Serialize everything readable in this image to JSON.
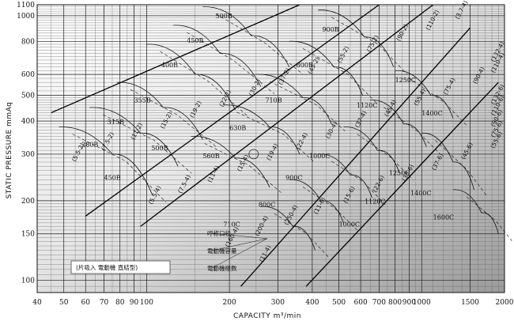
{
  "chart_data": {
    "type": "line",
    "title": "",
    "xlabel": "CAPACITY m³/min",
    "ylabel": "STATIC PRESSURE mmAq",
    "x_scale": "log",
    "y_scale": "log",
    "xlim": [
      40,
      2000
    ],
    "ylim": [
      90,
      1100
    ],
    "x_ticks": [
      "40",
      "50",
      "60",
      "70",
      "80",
      "90",
      "100",
      "200",
      "300",
      "400",
      "500",
      "600",
      "700",
      "800",
      "900",
      "1000",
      "1500",
      "2000"
    ],
    "x_tick_values": [
      40,
      50,
      60,
      70,
      80,
      90,
      100,
      200,
      300,
      400,
      500,
      600,
      700,
      800,
      900,
      1000,
      1500,
      2000
    ],
    "y_ticks": [
      "100",
      "150",
      "200",
      "300",
      "400",
      "500",
      "600",
      "800",
      "1000",
      "1100"
    ],
    "y_tick_values": [
      100,
      150,
      200,
      300,
      400,
      500,
      600,
      800,
      1000,
      1100
    ],
    "grid": true,
    "series": [
      {
        "name": "280B",
        "values": [
          [
            48,
            380
          ],
          [
            75,
            300
          ],
          [
            105,
            210
          ]
        ]
      },
      {
        "name": "315B",
        "values": [
          [
            62,
            450
          ],
          [
            95,
            360
          ],
          [
            130,
            270
          ]
        ]
      },
      {
        "name": "355B",
        "values": [
          [
            78,
            560
          ],
          [
            115,
            450
          ],
          [
            160,
            340
          ]
        ]
      },
      {
        "name": "400B",
        "values": [
          [
            100,
            780
          ],
          [
            150,
            600
          ],
          [
            210,
            440
          ]
        ]
      },
      {
        "name": "450B",
        "values": [
          [
            125,
            920
          ],
          [
            185,
            720
          ],
          [
            260,
            540
          ]
        ]
      },
      {
        "name": "500B",
        "values": [
          [
            160,
            1080
          ],
          [
            240,
            840
          ],
          [
            330,
            640
          ]
        ]
      },
      {
        "name": "560B",
        "values": [
          [
            145,
            350
          ],
          [
            210,
            290
          ],
          [
            280,
            225
          ]
        ]
      },
      {
        "name": "630B",
        "values": [
          [
            190,
            460
          ],
          [
            280,
            380
          ],
          [
            360,
            300
          ]
        ]
      },
      {
        "name": "710B",
        "values": [
          [
            250,
            600
          ],
          [
            370,
            490
          ],
          [
            470,
            390
          ]
        ]
      },
      {
        "name": "800B",
        "values": [
          [
            330,
            800
          ],
          [
            480,
            640
          ],
          [
            610,
            500
          ]
        ]
      },
      {
        "name": "900B",
        "values": [
          [
            420,
            1050
          ],
          [
            620,
            830
          ],
          [
            790,
            640
          ]
        ]
      },
      {
        "name": "710C",
        "values": [
          [
            260,
            190
          ],
          [
            340,
            160
          ],
          [
            410,
            130
          ]
        ]
      },
      {
        "name": "800C",
        "values": [
          [
            330,
            240
          ],
          [
            430,
            200
          ],
          [
            520,
            165
          ]
        ]
      },
      {
        "name": "900C",
        "values": [
          [
            420,
            300
          ],
          [
            550,
            250
          ],
          [
            660,
            205
          ]
        ]
      },
      {
        "name": "1000C",
        "values": [
          [
            520,
            380
          ],
          [
            690,
            310
          ],
          [
            830,
            255
          ]
        ]
      },
      {
        "name": "1120C",
        "values": [
          [
            650,
            480
          ],
          [
            860,
            390
          ],
          [
            1040,
            320
          ]
        ]
      },
      {
        "name": "1250C",
        "values": [
          [
            800,
            620
          ],
          [
            1080,
            500
          ],
          [
            1300,
            410
          ]
        ]
      },
      {
        "name": "1400C",
        "values": [
          [
            1000,
            360
          ],
          [
            1300,
            280
          ],
          [
            1550,
            220
          ]
        ]
      },
      {
        "name": "1600C",
        "values": [
          [
            1300,
            220
          ],
          [
            1650,
            180
          ],
          [
            1900,
            150
          ]
        ]
      }
    ],
    "region_labels": [
      "280B",
      "315B",
      "355B",
      "400B",
      "450B",
      "500B",
      "450B",
      "500B",
      "560B",
      "630B",
      "710B",
      "800B",
      "900B",
      "710C",
      "800C",
      "900C",
      "1000C",
      "1120C",
      "1250C",
      "1400C",
      "1000C",
      "1120C",
      "1250C",
      "1400C",
      "1600C"
    ],
    "legend": {
      "title": "(片吸入 電動機 直結型)",
      "items": [
        "呼称口径",
        "電動機容量",
        "電動機極数"
      ],
      "sample_label": "(11-4)"
    },
    "motor_labels": [
      "(5.5-2)",
      "(7.5-2)",
      "(11-2)",
      "(15-2)",
      "(19-2)",
      "(22-2)",
      "(30-2)",
      "(37-2)",
      "(45-2)",
      "(55-2)",
      "(75-2)",
      "(90-2)",
      "(110-2)",
      "(3.7-4)",
      "(5.5-4)",
      "(7.5-4)",
      "(11-4)",
      "(15-4)",
      "(19-4)",
      "(22-4)",
      "(30-4)",
      "(37-4)",
      "(45-4)",
      "(55-4)",
      "(75-4)",
      "(90-4)",
      "(110-4)",
      "(132-4)",
      "(160-4)",
      "(200-4)",
      "(250-4)",
      "(11-6)",
      "(15-6)",
      "(22-6)",
      "(30-6)",
      "(37-6)",
      "(45-6)",
      "(55-6)",
      "(75-6)",
      "(90-6)",
      "(110-6)",
      "(132-6)"
    ]
  }
}
